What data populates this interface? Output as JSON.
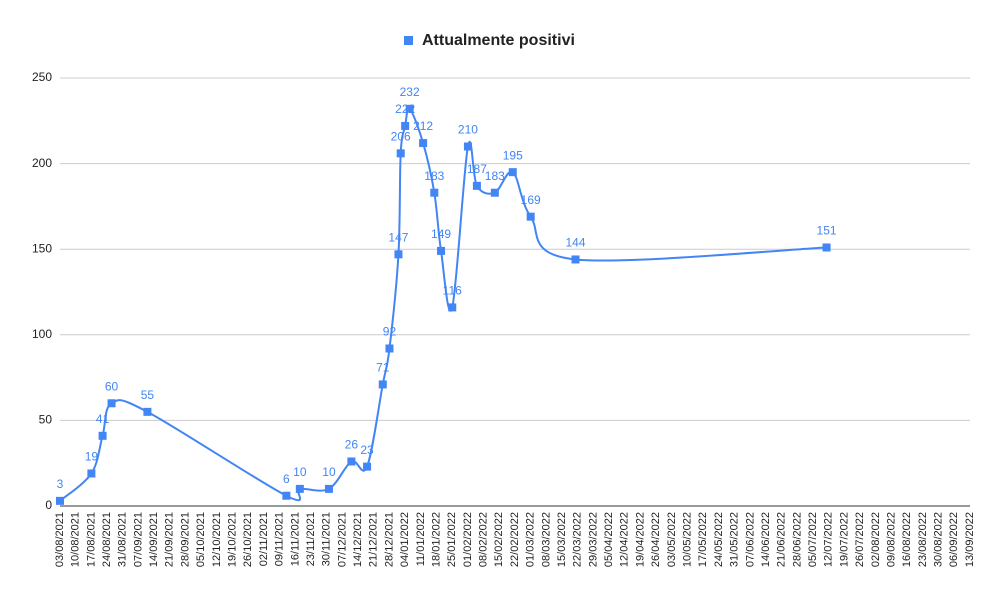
{
  "chart_data": {
    "type": "line",
    "legend": "top",
    "x": [
      "03/08/2021",
      "17/08/2021",
      "22/08/2021",
      "26/08/2021",
      "11/09/2021",
      "12/11/2021",
      "18/11/2021",
      "01/12/2021",
      "11/12/2021",
      "18/12/2021",
      "25/12/2021",
      "28/12/2021",
      "01/01/2022",
      "02/01/2022",
      "04/01/2022",
      "06/01/2022",
      "12/01/2022",
      "17/01/2022",
      "20/01/2022",
      "25/01/2022",
      "01/02/2022",
      "05/02/2022",
      "13/02/2022",
      "21/02/2022",
      "01/03/2022",
      "21/03/2022",
      "11/07/2022"
    ],
    "series": [
      {
        "name": "Attualmente positivi",
        "color": "#4285f4",
        "values": [
          3,
          19,
          41,
          60,
          55,
          6,
          10,
          10,
          26,
          23,
          71,
          92,
          147,
          206,
          222,
          232,
          212,
          183,
          149,
          116,
          210,
          187,
          183,
          195,
          169,
          144,
          151
        ]
      }
    ],
    "xlim": [
      "03/08/2021",
      "13/09/2022"
    ],
    "xticks": [
      "03/08/2021",
      "10/08/2021",
      "17/08/2021",
      "24/08/2021",
      "31/08/2021",
      "07/09/2021",
      "14/09/2021",
      "21/09/2021",
      "28/09/2021",
      "05/10/2021",
      "12/10/2021",
      "19/10/2021",
      "26/10/2021",
      "02/11/2021",
      "09/11/2021",
      "16/11/2021",
      "23/11/2021",
      "30/11/2021",
      "07/12/2021",
      "14/12/2021",
      "21/12/2021",
      "28/12/2021",
      "04/01/2022",
      "11/01/2022",
      "18/01/2022",
      "25/01/2022",
      "01/02/2022",
      "08/02/2022",
      "15/02/2022",
      "22/02/2022",
      "01/03/2022",
      "08/03/2022",
      "15/03/2022",
      "22/03/2022",
      "29/03/2022",
      "05/04/2022",
      "12/04/2022",
      "19/04/2022",
      "26/04/2022",
      "03/05/2022",
      "10/05/2022",
      "17/05/2022",
      "24/05/2022",
      "31/05/2022",
      "07/06/2022",
      "14/06/2022",
      "21/06/2022",
      "28/06/2022",
      "05/07/2022",
      "12/07/2022",
      "19/07/2022",
      "26/07/2022",
      "02/08/2022",
      "09/08/2022",
      "16/08/2022",
      "23/08/2022",
      "30/08/2022",
      "06/09/2022",
      "13/09/2022"
    ],
    "ylim": [
      0,
      250
    ],
    "yticks": [
      0,
      50,
      100,
      150,
      200,
      250
    ],
    "grid": true
  }
}
